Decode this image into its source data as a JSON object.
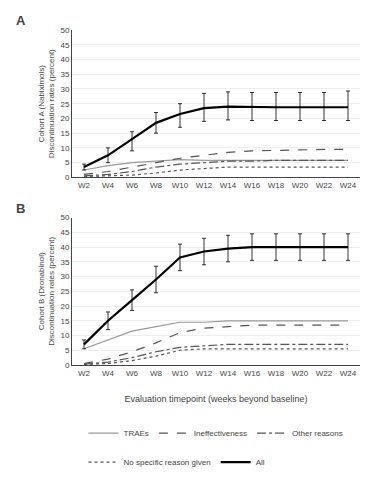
{
  "chart_data": [
    {
      "type": "line",
      "title": "A",
      "ylabel": [
        "Cohort A (Nabiximols)",
        "Discontinuation rates (percent)"
      ],
      "x": [
        2,
        4,
        6,
        8,
        10,
        12,
        14,
        16,
        18,
        20,
        22,
        24
      ],
      "xlim": [
        1,
        25
      ],
      "xticks": [
        {
          "value": 2,
          "label": "W2"
        },
        {
          "value": 4,
          "label": "W4"
        },
        {
          "value": 6,
          "label": "W6"
        },
        {
          "value": 8,
          "label": "W8"
        },
        {
          "value": 10,
          "label": "W10"
        },
        {
          "value": 12,
          "label": "W12"
        },
        {
          "value": 14,
          "label": "W14"
        },
        {
          "value": 16,
          "label": "W16"
        },
        {
          "value": 18,
          "label": "W18"
        },
        {
          "value": 20,
          "label": "W20"
        },
        {
          "value": 22,
          "label": "W22"
        },
        {
          "value": 24,
          "label": "W24"
        }
      ],
      "ylim": [
        0,
        50
      ],
      "yticks": [
        0,
        5,
        10,
        15,
        20,
        25,
        30,
        35,
        40,
        45,
        50
      ],
      "grid": true,
      "legend": "bottom",
      "series": [
        {
          "name": "TRAEs",
          "color": "#999999",
          "line_style": "solid",
          "values": [
            2.5,
            4.0,
            5.0,
            5.5,
            6.0,
            5.8,
            5.8,
            5.8,
            5.8,
            5.8,
            5.8,
            5.8
          ]
        },
        {
          "name": "Ineffectiveness",
          "color": "#555555",
          "line_style": "dash",
          "values": [
            1.0,
            2.0,
            3.5,
            5.0,
            6.5,
            7.5,
            8.5,
            9.0,
            9.2,
            9.5,
            9.5,
            9.5
          ]
        },
        {
          "name": "Other reasons",
          "color": "#555555",
          "line_style": "dashdot",
          "values": [
            0.5,
            1.0,
            2.0,
            3.5,
            4.5,
            5.0,
            5.5,
            5.5,
            5.8,
            5.8,
            5.8,
            5.8
          ]
        },
        {
          "name": "No specific reason given",
          "color": "#555555",
          "line_style": "dot",
          "values": [
            0.3,
            0.5,
            0.8,
            1.5,
            2.5,
            3.0,
            3.5,
            3.5,
            3.5,
            3.5,
            3.5,
            3.5
          ]
        },
        {
          "name": "All",
          "color": "#000000",
          "line_style": "solid",
          "values": [
            3.5,
            7.5,
            13.0,
            18.5,
            21.5,
            23.5,
            24.0,
            23.8,
            23.8,
            23.8,
            23.8,
            23.8
          ],
          "error_lo": [
            1.0,
            2.5,
            4.0,
            3.5,
            4.5,
            4.5,
            4.5,
            4.5,
            4.5,
            4.5,
            4.5,
            4.5
          ],
          "error_hi": [
            1.0,
            2.5,
            2.5,
            3.5,
            3.5,
            5.0,
            5.0,
            5.0,
            5.0,
            5.0,
            5.0,
            5.5
          ]
        }
      ]
    },
    {
      "type": "line",
      "title": "B",
      "ylabel": [
        "Cohort B (Dronabinol)",
        "Discontinuation rates (percent)"
      ],
      "xlabel": "Evaluation timepoint (weeks beyond baseline)",
      "x": [
        2,
        4,
        6,
        8,
        10,
        12,
        14,
        16,
        18,
        20,
        22,
        24
      ],
      "xlim": [
        1,
        25
      ],
      "xticks": [
        {
          "value": 2,
          "label": "W2"
        },
        {
          "value": 4,
          "label": "W4"
        },
        {
          "value": 6,
          "label": "W6"
        },
        {
          "value": 8,
          "label": "W8"
        },
        {
          "value": 10,
          "label": "W10"
        },
        {
          "value": 12,
          "label": "W12"
        },
        {
          "value": 14,
          "label": "W14"
        },
        {
          "value": 16,
          "label": "W16"
        },
        {
          "value": 18,
          "label": "W18"
        },
        {
          "value": 20,
          "label": "W20"
        },
        {
          "value": 22,
          "label": "W22"
        },
        {
          "value": 24,
          "label": "W24"
        }
      ],
      "ylim": [
        0,
        50
      ],
      "yticks": [
        0,
        5,
        10,
        15,
        20,
        25,
        30,
        35,
        40,
        45,
        50
      ],
      "grid": true,
      "legend": "bottom",
      "series": [
        {
          "name": "TRAEs",
          "color": "#999999",
          "line_style": "solid",
          "values": [
            5.5,
            8.5,
            11.5,
            13.0,
            14.5,
            14.5,
            15.0,
            15.0,
            15.0,
            15.0,
            15.0,
            15.0
          ]
        },
        {
          "name": "Ineffectiveness",
          "color": "#555555",
          "line_style": "dash",
          "values": [
            0.5,
            2.0,
            4.5,
            7.5,
            11.0,
            12.5,
            13.0,
            13.5,
            13.5,
            13.5,
            13.5,
            13.5
          ]
        },
        {
          "name": "Other reasons",
          "color": "#555555",
          "line_style": "dashdot",
          "values": [
            0.3,
            1.0,
            2.5,
            4.5,
            6.0,
            6.5,
            7.0,
            7.0,
            7.0,
            7.0,
            7.0,
            7.0
          ]
        },
        {
          "name": "No specific reason given",
          "color": "#555555",
          "line_style": "dot",
          "values": [
            0.2,
            0.5,
            1.5,
            3.0,
            5.0,
            5.5,
            5.5,
            5.5,
            5.5,
            5.5,
            5.5,
            5.5
          ]
        },
        {
          "name": "All",
          "color": "#000000",
          "line_style": "solid",
          "values": [
            7.0,
            15.0,
            22.0,
            29.0,
            36.5,
            38.5,
            39.5,
            40.0,
            40.0,
            40.0,
            40.0,
            40.0
          ],
          "error_lo": [
            1.5,
            3.0,
            3.5,
            4.5,
            4.5,
            4.5,
            4.5,
            4.5,
            4.5,
            4.5,
            4.5,
            4.5
          ],
          "error_hi": [
            1.5,
            3.0,
            3.5,
            4.5,
            4.5,
            4.5,
            4.5,
            4.5,
            4.5,
            4.5,
            4.5,
            4.5
          ]
        }
      ]
    }
  ]
}
